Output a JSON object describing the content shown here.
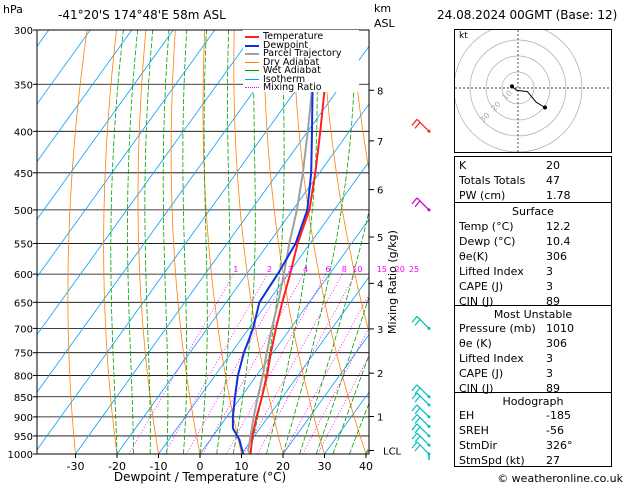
{
  "header": {
    "hpa_label": "hPa",
    "location": "-41°20'S  174°48'E  58m  ASL",
    "km_label": "km",
    "asl_label": "ASL",
    "datetime": "24.08.2024  00GMT  (Base: 12)"
  },
  "footer": {
    "credit": "© weatheronline.co.uk"
  },
  "chart_data": {
    "type": "line",
    "subtype": "skew-T log-P sounding diagram",
    "xlabel": "Dewpoint / Temperature (°C)",
    "ylabel_right": "Mixing Ratio (g/kg)",
    "xlim": [
      -35,
      40
    ],
    "ylim": [
      1000,
      300
    ],
    "x_ticks": [
      -30,
      -20,
      -10,
      0,
      10,
      20,
      30,
      40
    ],
    "pressure_ticks": [
      300,
      350,
      400,
      450,
      500,
      550,
      600,
      650,
      700,
      750,
      800,
      850,
      900,
      950,
      1000
    ],
    "altitude_ticks": [
      {
        "label": "8",
        "p": 356
      },
      {
        "label": "7",
        "p": 411
      },
      {
        "label": "6",
        "p": 472
      },
      {
        "label": "5",
        "p": 540
      },
      {
        "label": "4",
        "p": 616
      },
      {
        "label": "3",
        "p": 701
      },
      {
        "label": "2",
        "p": 795
      },
      {
        "label": "1",
        "p": 899
      },
      {
        "label": "LCL",
        "p": 990
      }
    ],
    "mixing_ratio_labels": [
      "1",
      "2",
      "3",
      "4",
      "6",
      "8",
      "10",
      "15",
      "20",
      "25"
    ],
    "legend": [
      "Temperature",
      "Dewpoint",
      "Parcel Trajectory",
      "Dry Adiabat",
      "Wet Adiabat",
      "Isotherm",
      "Mixing Ratio"
    ],
    "colors": {
      "temperature": "#ff2020",
      "dewpoint": "#1030e0",
      "parcel": "#a0a0a0",
      "dry_adiabat": "#ff8000",
      "wet_adiabat": "#00a000",
      "isotherm": "#00a0ff",
      "mixing_ratio": "#ff00ff"
    },
    "series": [
      {
        "name": "Temperature",
        "points": [
          [
            1000,
            12.2
          ],
          [
            950,
            9.5
          ],
          [
            900,
            7.2
          ],
          [
            850,
            5.0
          ],
          [
            800,
            2.5
          ],
          [
            750,
            -0.5
          ],
          [
            700,
            -3.5
          ],
          [
            650,
            -6.5
          ],
          [
            600,
            -9.5
          ],
          [
            550,
            -13.0
          ],
          [
            500,
            -16.0
          ],
          [
            450,
            -21.0
          ],
          [
            400,
            -27.0
          ],
          [
            350,
            -34.0
          ],
          [
            300,
            -42.0
          ]
        ]
      },
      {
        "name": "Dewpoint",
        "points": [
          [
            1000,
            10.4
          ],
          [
            960,
            7.0
          ],
          [
            930,
            3.5
          ],
          [
            900,
            1.5
          ],
          [
            850,
            -1.5
          ],
          [
            800,
            -4.5
          ],
          [
            750,
            -7.0
          ],
          [
            700,
            -9.0
          ],
          [
            650,
            -12.0
          ],
          [
            600,
            -12.5
          ],
          [
            550,
            -13.5
          ],
          [
            500,
            -16.5
          ],
          [
            450,
            -22.0
          ],
          [
            400,
            -29.0
          ],
          [
            350,
            -37.0
          ],
          [
            300,
            -44.0
          ]
        ]
      },
      {
        "name": "Parcel Trajectory",
        "points": [
          [
            1000,
            12.2
          ],
          [
            990,
            11.0
          ],
          [
            900,
            6.5
          ],
          [
            850,
            4.0
          ],
          [
            800,
            1.5
          ],
          [
            750,
            -1.5
          ],
          [
            700,
            -4.5
          ],
          [
            650,
            -7.5
          ],
          [
            600,
            -11.0
          ],
          [
            550,
            -15.0
          ],
          [
            500,
            -19.0
          ],
          [
            450,
            -24.0
          ],
          [
            400,
            -30.0
          ],
          [
            350,
            -37.0
          ],
          [
            300,
            -45.0
          ]
        ]
      }
    ],
    "hodograph": {
      "label": "kt",
      "ring_labels": [
        "10",
        "20",
        "30"
      ],
      "trace": [
        [
          -5,
          2
        ],
        [
          -3,
          -1
        ],
        [
          2,
          -2
        ],
        [
          6,
          -10
        ],
        [
          10,
          -14
        ]
      ]
    },
    "wind_barbs_count": 10
  },
  "indices": [
    {
      "key": "K",
      "value": "20"
    },
    {
      "key": "Totals Totals",
      "value": "47"
    },
    {
      "key": "PW (cm)",
      "value": "1.78"
    }
  ],
  "surface": {
    "title": "Surface",
    "rows": [
      {
        "key": "Temp (°C)",
        "value": "12.2"
      },
      {
        "key": "Dewp (°C)",
        "value": "10.4"
      },
      {
        "key": "θe(K)",
        "value": "306"
      },
      {
        "key": "Lifted Index",
        "value": "3"
      },
      {
        "key": "CAPE (J)",
        "value": "3"
      },
      {
        "key": "CIN (J)",
        "value": "89"
      }
    ]
  },
  "most_unstable": {
    "title": "Most Unstable",
    "rows": [
      {
        "key": "Pressure (mb)",
        "value": "1010"
      },
      {
        "key": "θe (K)",
        "value": "306"
      },
      {
        "key": "Lifted Index",
        "value": "3"
      },
      {
        "key": "CAPE (J)",
        "value": "3"
      },
      {
        "key": "CIN (J)",
        "value": "89"
      }
    ]
  },
  "hodograph_panel": {
    "title": "Hodograph",
    "rows": [
      {
        "key": "EH",
        "value": "-185"
      },
      {
        "key": "SREH",
        "value": "-56"
      },
      {
        "key": "StmDir",
        "value": "326°"
      },
      {
        "key": "StmSpd (kt)",
        "value": "27"
      }
    ]
  }
}
